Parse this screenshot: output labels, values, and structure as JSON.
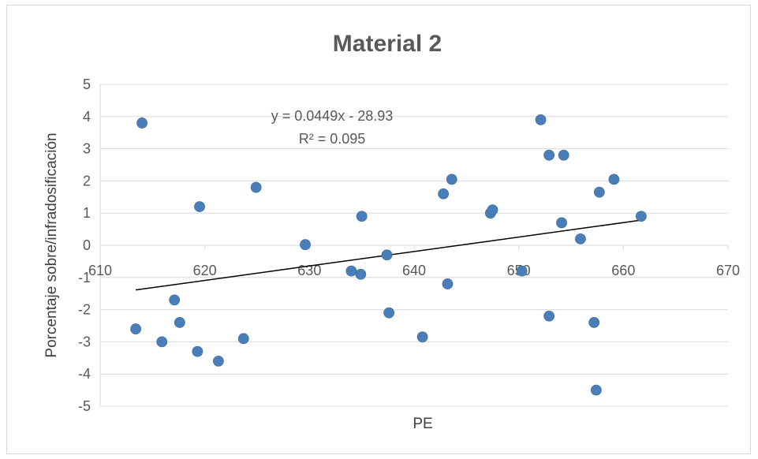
{
  "chart_data": {
    "type": "scatter",
    "title": "Material 2",
    "xlabel": "PE",
    "ylabel": "Porcentaje sobre/infradosificación",
    "xlim": [
      610,
      670
    ],
    "ylim": [
      -5,
      5
    ],
    "x_ticks": [
      610,
      620,
      630,
      640,
      650,
      660,
      670
    ],
    "y_ticks": [
      5,
      4,
      3,
      2,
      1,
      0,
      -1,
      -2,
      -3,
      -4,
      -5
    ],
    "grid": "horizontal",
    "legend": "none",
    "series": [
      {
        "color": "#4a7ebb",
        "points": [
          [
            614.0,
            3.8
          ],
          [
            613.4,
            -2.6
          ],
          [
            615.9,
            -3.0
          ],
          [
            617.1,
            -1.7
          ],
          [
            617.6,
            -2.4
          ],
          [
            619.3,
            -3.3
          ],
          [
            619.5,
            1.2
          ],
          [
            621.3,
            -3.6
          ],
          [
            623.7,
            -2.9
          ],
          [
            624.9,
            1.8
          ],
          [
            629.6,
            0.02
          ],
          [
            634.0,
            -0.8
          ],
          [
            634.9,
            -0.9
          ],
          [
            635.0,
            0.9
          ],
          [
            637.4,
            -0.3
          ],
          [
            637.6,
            -2.1
          ],
          [
            640.8,
            -2.85
          ],
          [
            642.8,
            1.6
          ],
          [
            643.2,
            -1.2
          ],
          [
            643.6,
            2.05
          ],
          [
            647.3,
            1.0
          ],
          [
            647.5,
            1.1
          ],
          [
            650.3,
            -0.8
          ],
          [
            652.1,
            3.9
          ],
          [
            652.9,
            2.8
          ],
          [
            652.9,
            -2.2
          ],
          [
            654.1,
            0.7
          ],
          [
            654.3,
            2.8
          ],
          [
            655.9,
            0.2
          ],
          [
            657.2,
            -2.4
          ],
          [
            657.4,
            -4.5
          ],
          [
            657.7,
            1.65
          ],
          [
            659.1,
            2.05
          ],
          [
            661.7,
            0.9
          ]
        ]
      }
    ],
    "trendline": {
      "slope": 0.0449,
      "intercept": -28.93,
      "x_range": [
        613.4,
        661.7
      ],
      "color": "#000000",
      "equation_label": "y = 0.0449x - 28.93",
      "r2_label": "R² = 0.095"
    },
    "colors": {
      "gridline": "#d9d9d9",
      "tick_text": "#595959",
      "frame": "#d9d9d9"
    }
  }
}
